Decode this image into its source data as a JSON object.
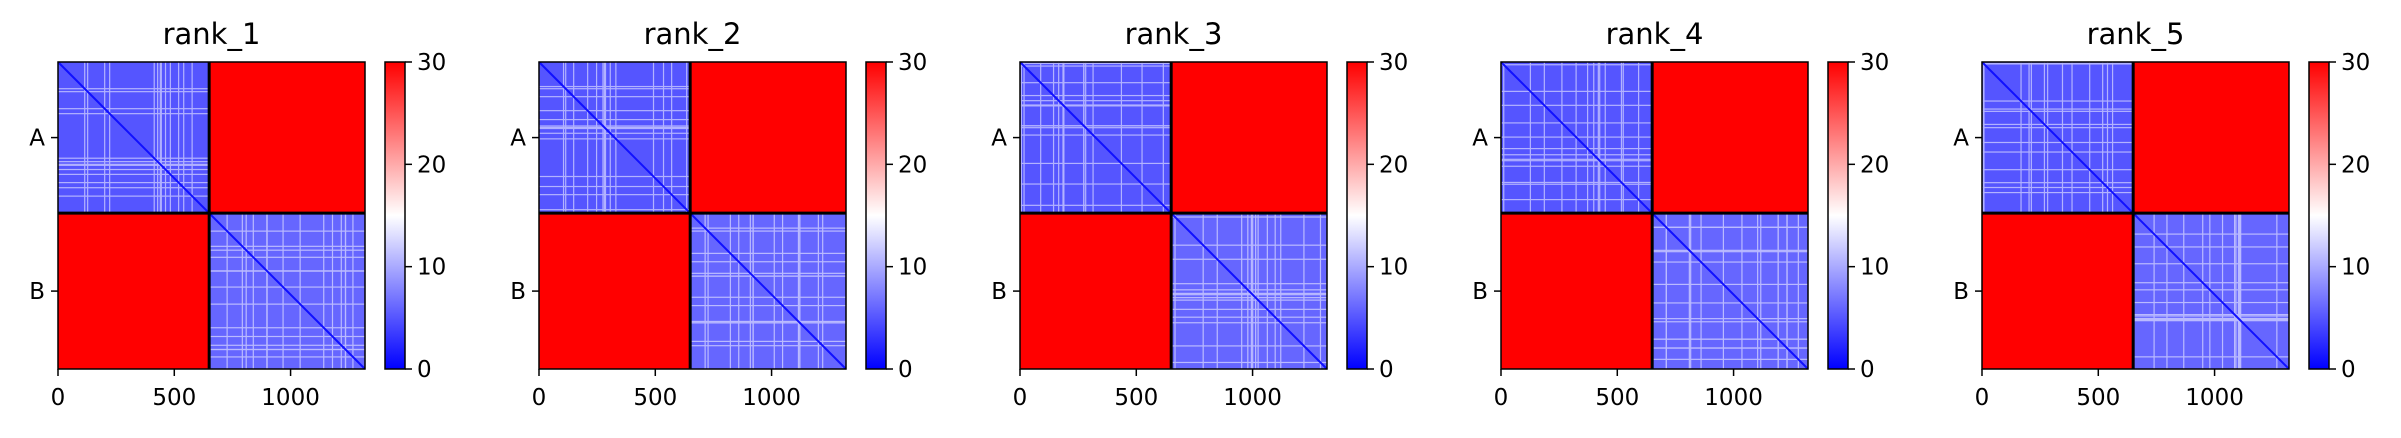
{
  "chart_data": [
    {
      "type": "heatmap",
      "title": "rank_1",
      "x_ticks": [
        0,
        500,
        1000
      ],
      "xlim": [
        0,
        1320
      ],
      "y_tick_labels": [
        "A",
        "B"
      ],
      "chain_boundary": 650,
      "colorbar": {
        "ticks": [
          0,
          10,
          20,
          30
        ],
        "range": [
          0,
          30
        ],
        "colormap": [
          "#0000ff",
          "#ffffff",
          "#ff0000"
        ]
      },
      "regions": [
        {
          "x": [
            0,
            650
          ],
          "y": [
            0,
            650
          ],
          "value": 5
        },
        {
          "x": [
            650,
            1320
          ],
          "y": [
            0,
            650
          ],
          "value": 30
        },
        {
          "x": [
            0,
            650
          ],
          "y": [
            650,
            1320
          ],
          "value": 30
        },
        {
          "x": [
            650,
            1320
          ],
          "y": [
            650,
            1320
          ],
          "value": 6
        }
      ]
    },
    {
      "type": "heatmap",
      "title": "rank_2",
      "x_ticks": [
        0,
        500,
        1000
      ],
      "xlim": [
        0,
        1320
      ],
      "y_tick_labels": [
        "A",
        "B"
      ],
      "chain_boundary": 650,
      "colorbar": {
        "ticks": [
          0,
          10,
          20,
          30
        ],
        "range": [
          0,
          30
        ],
        "colormap": [
          "#0000ff",
          "#ffffff",
          "#ff0000"
        ]
      },
      "regions": [
        {
          "x": [
            0,
            650
          ],
          "y": [
            0,
            650
          ],
          "value": 5
        },
        {
          "x": [
            650,
            1320
          ],
          "y": [
            0,
            650
          ],
          "value": 30
        },
        {
          "x": [
            0,
            650
          ],
          "y": [
            650,
            1320
          ],
          "value": 30
        },
        {
          "x": [
            650,
            1320
          ],
          "y": [
            650,
            1320
          ],
          "value": 6
        }
      ]
    },
    {
      "type": "heatmap",
      "title": "rank_3",
      "x_ticks": [
        0,
        500,
        1000
      ],
      "xlim": [
        0,
        1320
      ],
      "y_tick_labels": [
        "A",
        "B"
      ],
      "chain_boundary": 650,
      "colorbar": {
        "ticks": [
          0,
          10,
          20,
          30
        ],
        "range": [
          0,
          30
        ],
        "colormap": [
          "#0000ff",
          "#ffffff",
          "#ff0000"
        ]
      },
      "regions": [
        {
          "x": [
            0,
            650
          ],
          "y": [
            0,
            650
          ],
          "value": 5
        },
        {
          "x": [
            650,
            1320
          ],
          "y": [
            0,
            650
          ],
          "value": 30
        },
        {
          "x": [
            0,
            650
          ],
          "y": [
            650,
            1320
          ],
          "value": 30
        },
        {
          "x": [
            650,
            1320
          ],
          "y": [
            650,
            1320
          ],
          "value": 6
        }
      ]
    },
    {
      "type": "heatmap",
      "title": "rank_4",
      "x_ticks": [
        0,
        500,
        1000
      ],
      "xlim": [
        0,
        1320
      ],
      "y_tick_labels": [
        "A",
        "B"
      ],
      "chain_boundary": 650,
      "colorbar": {
        "ticks": [
          0,
          10,
          20,
          30
        ],
        "range": [
          0,
          30
        ],
        "colormap": [
          "#0000ff",
          "#ffffff",
          "#ff0000"
        ]
      },
      "regions": [
        {
          "x": [
            0,
            650
          ],
          "y": [
            0,
            650
          ],
          "value": 5
        },
        {
          "x": [
            650,
            1320
          ],
          "y": [
            0,
            650
          ],
          "value": 30
        },
        {
          "x": [
            0,
            650
          ],
          "y": [
            650,
            1320
          ],
          "value": 30
        },
        {
          "x": [
            650,
            1320
          ],
          "y": [
            650,
            1320
          ],
          "value": 6
        }
      ]
    },
    {
      "type": "heatmap",
      "title": "rank_5",
      "x_ticks": [
        0,
        500,
        1000
      ],
      "xlim": [
        0,
        1320
      ],
      "y_tick_labels": [
        "A",
        "B"
      ],
      "chain_boundary": 650,
      "colorbar": {
        "ticks": [
          0,
          10,
          20,
          30
        ],
        "range": [
          0,
          30
        ],
        "colormap": [
          "#0000ff",
          "#ffffff",
          "#ff0000"
        ]
      },
      "regions": [
        {
          "x": [
            0,
            650
          ],
          "y": [
            0,
            650
          ],
          "value": 5
        },
        {
          "x": [
            650,
            1320
          ],
          "y": [
            0,
            650
          ],
          "value": 30
        },
        {
          "x": [
            0,
            650
          ],
          "y": [
            650,
            1320
          ],
          "value": 30
        },
        {
          "x": [
            650,
            1320
          ],
          "y": [
            650,
            1320
          ],
          "value": 6
        }
      ]
    }
  ]
}
